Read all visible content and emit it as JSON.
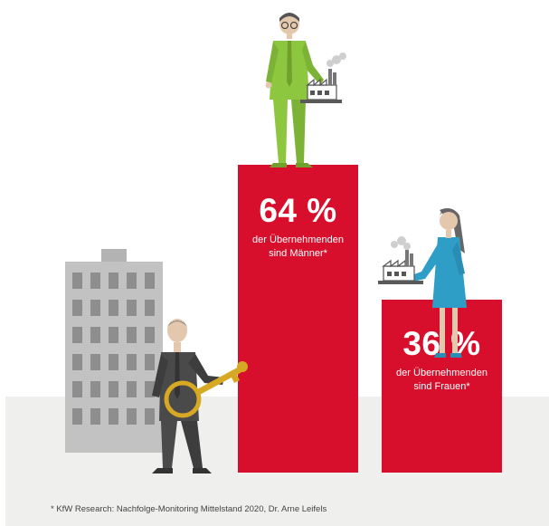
{
  "chart_data": {
    "type": "bar",
    "categories": [
      "Männer",
      "Frauen"
    ],
    "values": [
      64,
      36
    ],
    "ylim": [
      0,
      64
    ],
    "unit": "%",
    "data_labels": [
      {
        "value": "64 %",
        "line1": "der Übernehmenden",
        "line2": "sind Männer*"
      },
      {
        "value": "36 %",
        "line1": "der Übernehmenden",
        "line2": "sind Frauen*"
      }
    ]
  },
  "footnote": "* KfW Research: Nachfolge-Monitoring Mittelstand 2020, Dr. Arne Leifels",
  "colors": {
    "bar": "#d70f2c",
    "man_suit": "#8dc63f",
    "woman_dress": "#2f9ec7",
    "key": "#d6a823",
    "building": "#bdbdbd",
    "ground": "#efefed"
  },
  "icons": [
    "building-illustration",
    "man-with-key-illustration",
    "man-with-factory-illustration",
    "woman-with-factory-illustration",
    "factory-icon",
    "key-icon"
  ]
}
